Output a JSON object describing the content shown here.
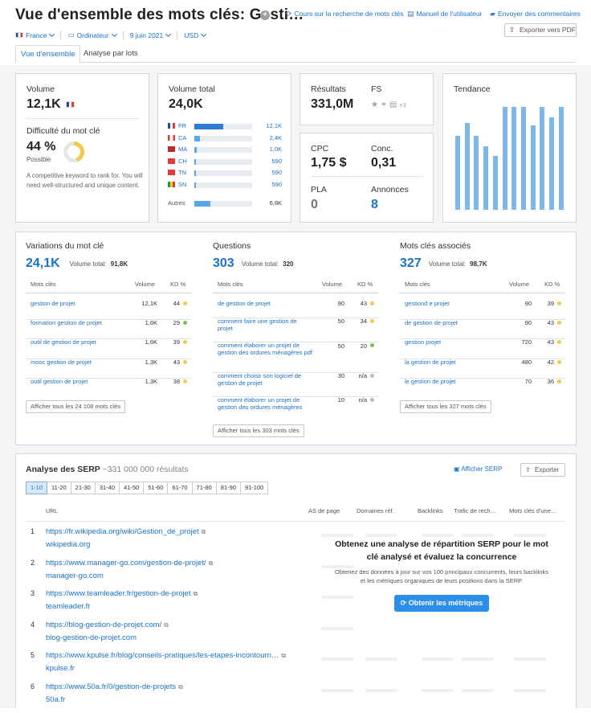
{
  "header": {
    "title": "Vue d'ensemble des mots clés: Gesti…",
    "links": [
      {
        "icon": "sync-icon",
        "label": "Cours sur la recherche de mots clés"
      },
      {
        "icon": "book-icon",
        "label": "Manuel de l'utilisateur"
      },
      {
        "icon": "chat-icon",
        "label": "Envoyer des commentaires"
      }
    ],
    "filters": {
      "country": "France",
      "device": "Ordinateur",
      "date": "9 juin 2021",
      "currency": "USD"
    },
    "export_pdf": "Exporter vers PDF"
  },
  "tabs": [
    "Vue d'ensemble",
    "Analyse par lots"
  ],
  "volume": {
    "label": "Volume",
    "value": "12,1K"
  },
  "difficulty": {
    "label": "Difficulté du mot clé",
    "value": "44 %",
    "level": "Possible",
    "percent": 44,
    "description": "A competitive keyword to rank for. You will need well-structured and unique content."
  },
  "total_volume": {
    "label": "Volume total",
    "value": "24,0K",
    "countries": [
      {
        "code": "FR",
        "value": "12,1K",
        "share": 0.5
      },
      {
        "code": "CA",
        "value": "2,4K",
        "share": 0.1
      },
      {
        "code": "MA",
        "value": "1,0K",
        "share": 0.04
      },
      {
        "code": "CH",
        "value": "590",
        "share": 0.025
      },
      {
        "code": "TN",
        "value": "590",
        "share": 0.025
      },
      {
        "code": "SN",
        "value": "590",
        "share": 0.025
      }
    ],
    "others": {
      "label": "Autres",
      "value": "6,8K",
      "share": 0.28
    }
  },
  "results": {
    "label": "Résultats",
    "value": "331,0M"
  },
  "fs": {
    "label": "FS",
    "more": "+3"
  },
  "cpc": {
    "label": "CPC",
    "value": "1,75 $"
  },
  "conc": {
    "label": "Conc.",
    "value": "0,31"
  },
  "pla": {
    "label": "PLA",
    "value": "0"
  },
  "annonces": {
    "label": "Annonces",
    "value": "8"
  },
  "trend": {
    "label": "Tendance",
    "values": [
      0.72,
      0.84,
      0.72,
      0.62,
      0.52,
      1,
      1,
      1,
      0.82,
      1,
      0.9,
      1
    ]
  },
  "variations": {
    "title": "Variations du mot clé",
    "count": "24,1K",
    "total_label": "Volume total:",
    "total": "91,8K",
    "columns": [
      "Mots clés",
      "Volume",
      "KD %"
    ],
    "rows": [
      {
        "kw": "gestion de projet",
        "vol": "12,1K",
        "kd": "44",
        "color": "#f2c94c"
      },
      {
        "kw": "formation gestion de projet",
        "vol": "1,6K",
        "kd": "29",
        "color": "#7cbf4a"
      },
      {
        "kw": "outil de gestion de projet",
        "vol": "1,6K",
        "kd": "39",
        "color": "#f2c94c"
      },
      {
        "kw": "mooc gestion de projet",
        "vol": "1,3K",
        "kd": "43",
        "color": "#f2c94c"
      },
      {
        "kw": "outil gestion de projet",
        "vol": "1,3K",
        "kd": "38",
        "color": "#f2c94c"
      }
    ],
    "button": "Afficher tous les 24 108 mots clés"
  },
  "questions": {
    "title": "Questions",
    "count": "303",
    "total_label": "Volume total:",
    "total": "320",
    "columns": [
      "Mots clés",
      "Volume",
      "KD %"
    ],
    "rows": [
      {
        "kw": "de gestion de projet",
        "vol": "90",
        "kd": "43",
        "color": "#f2c94c"
      },
      {
        "kw": "comment faire une gestion de projet",
        "vol": "50",
        "kd": "34",
        "color": "#f2c94c"
      },
      {
        "kw": "comment élaborer un projet de gestion des ordures ménagères pdf",
        "vol": "50",
        "kd": "20",
        "color": "#7cbf4a"
      },
      {
        "kw": "comment choisir son logiciel de gestion de projet",
        "vol": "30",
        "kd": "n/a",
        "color": "#bdbdbd"
      },
      {
        "kw": "comment élaborer un projet de gestion des ordures ménagères",
        "vol": "10",
        "kd": "n/a",
        "color": "#bdbdbd"
      }
    ],
    "button": "Afficher tous les 303 mots clés"
  },
  "related": {
    "title": "Mots clés associés",
    "count": "327",
    "total_label": "Volume total:",
    "total": "98,7K",
    "columns": [
      "Mots clés",
      "Volume",
      "KD %"
    ],
    "rows": [
      {
        "kw": "gestiond e projet",
        "vol": "90",
        "kd": "39",
        "color": "#f2c94c"
      },
      {
        "kw": "de gestion de projet",
        "vol": "90",
        "kd": "43",
        "color": "#f2c94c"
      },
      {
        "kw": "gestion projet",
        "vol": "720",
        "kd": "43",
        "color": "#f2c94c"
      },
      {
        "kw": "la gestion de projet",
        "vol": "480",
        "kd": "42",
        "color": "#f2c94c"
      },
      {
        "kw": "le gestion de projet",
        "vol": "70",
        "kd": "36",
        "color": "#f2c94c"
      }
    ],
    "button": "Afficher tous les 327 mots clés"
  },
  "serp": {
    "title": "Analyse des SERP",
    "results": "~331 000 000 résultats",
    "show_serp": "Afficher SERP",
    "export": "Exporter",
    "pages": [
      "1-10",
      "11-20",
      "21-30",
      "31-40",
      "41-50",
      "51-60",
      "61-70",
      "71-80",
      "81-90",
      "91-100"
    ],
    "columns": [
      "URL",
      "AS de page",
      "Domaines réf.",
      "Backlinks",
      "Trafic de rech…",
      "Mots clés d'une…"
    ],
    "rows": [
      {
        "n": "1",
        "url": "https://fr.wikipedia.org/wiki/Gestion_de_projet",
        "domain": "wikipedia.org"
      },
      {
        "n": "2",
        "url": "https://www.manager-go.com/gestion-de-projet/",
        "domain": "manager-go.com"
      },
      {
        "n": "3",
        "url": "https://www.teamleader.fr/gestion-de-projet",
        "domain": "teamleader.fr"
      },
      {
        "n": "4",
        "url": "https://blog-gestion-de-projet.com/",
        "domain": "blog-gestion-de-projet.com"
      },
      {
        "n": "5",
        "url": "https://www.kpulse.fr/blog/conseils-pratiques/les-etapes-incontourn…",
        "domain": "kpulse.fr"
      },
      {
        "n": "6",
        "url": "https://www.50a.fr/0/gestion-de-projets",
        "domain": "50a.fr"
      }
    ],
    "overlay_title": "Obtenez une analyse de répartition SERP pour le mot clé analysé et évaluez la concurrence",
    "overlay_text": "Obtenez des données à jour sur vos 100 principaux concurrents, leurs backlinks et les métriques organiques de leurs positions dans la SERP.",
    "cta": "Obtenir les métriques"
  }
}
